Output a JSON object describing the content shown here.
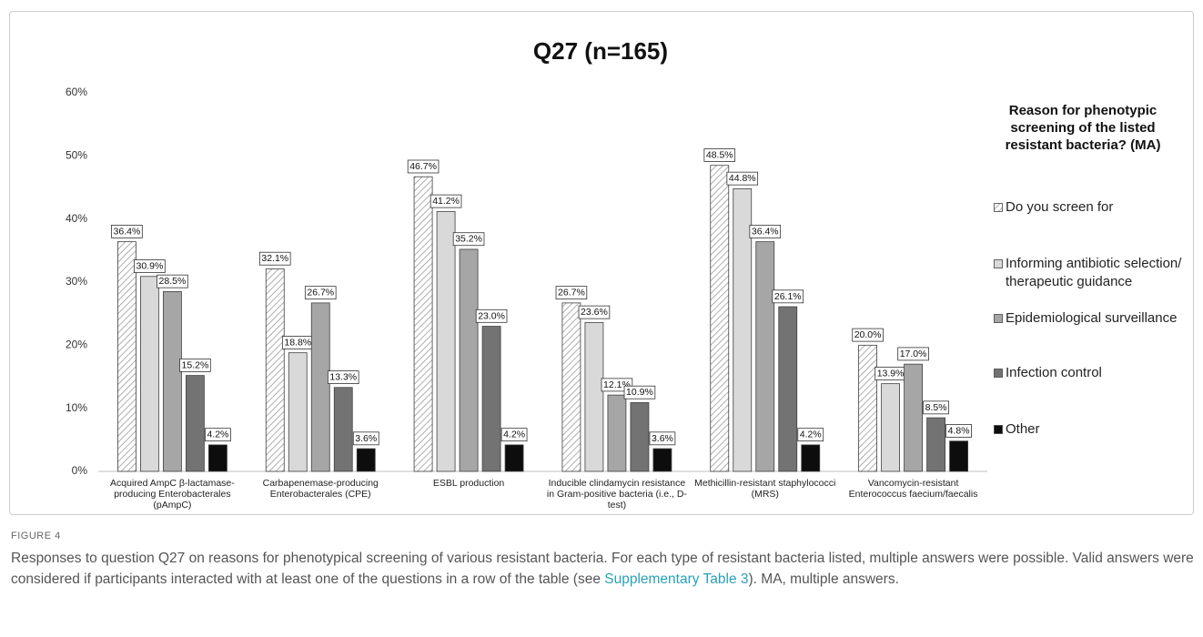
{
  "chart_data": {
    "type": "bar",
    "title": "Q27  (n=165)",
    "categories": [
      "Acquired AmpC β-lactamase-producing Enterobacterales (pAmpC)",
      "Carbapenemase-producing Enterobacterales (CPE)",
      "ESBL production",
      "Inducible clindamycin resistance in Gram-positive bacteria (i.e., D-test)",
      "Methicillin-resistant staphylococci (MRS)",
      "Vancomycin-resistant Enterococcus faecium/faecalis"
    ],
    "series": [
      {
        "name": "Do you screen for",
        "color": "#ffffff",
        "pattern": "hatch",
        "values": [
          36.4,
          32.1,
          46.7,
          26.7,
          48.5,
          20.0
        ],
        "value_labels": [
          "36.4%",
          "32.1%",
          "46.7%",
          "26.7%",
          "48.5%",
          "20.0%"
        ]
      },
      {
        "name": "Informing antibiotic selection/ therapeutic guidance",
        "color": "#d9d9d9",
        "values": [
          30.9,
          18.8,
          41.2,
          23.6,
          44.8,
          13.9
        ],
        "value_labels": [
          "30.9%",
          "18.8%",
          "41.2%",
          "23.6%",
          "44.8%",
          "13.9%"
        ]
      },
      {
        "name": "Epidemiological surveillance",
        "color": "#a6a6a6",
        "values": [
          28.5,
          26.7,
          35.2,
          12.1,
          36.4,
          17.0
        ],
        "value_labels": [
          "28.5%",
          "26.7%",
          "35.2%",
          "12.1%",
          "36.4%",
          "17.0%"
        ]
      },
      {
        "name": "Infection control",
        "color": "#737373",
        "values": [
          15.2,
          13.3,
          23.0,
          10.9,
          26.1,
          8.5
        ],
        "value_labels": [
          "15.2%",
          "13.3%",
          "23.0%",
          "10.9%",
          "26.1%",
          "8.5%"
        ]
      },
      {
        "name": "Other",
        "color": "#0d0d0d",
        "values": [
          4.2,
          3.6,
          4.2,
          3.6,
          4.2,
          4.8
        ],
        "value_labels": [
          "4.2%",
          "3.6%",
          "4.2%",
          "3.6%",
          "4.2%",
          "4.8%"
        ]
      }
    ],
    "ylim": [
      0,
      60
    ],
    "yticks": [
      {
        "value": 0,
        "label": "0%"
      },
      {
        "value": 10,
        "label": "10%"
      },
      {
        "value": 20,
        "label": "20%"
      },
      {
        "value": 30,
        "label": "30%"
      },
      {
        "value": 40,
        "label": "40%"
      },
      {
        "value": 50,
        "label": "50%"
      },
      {
        "value": 60,
        "label": "60%"
      }
    ],
    "grid": false,
    "legend_title": "Reason for phenotypic screening of the listed resistant bacteria? (MA)",
    "legend": "right"
  },
  "figure": {
    "label": "FIGURE 4",
    "caption": [
      "Responses to question Q27 on reasons for phenotypical screening of various resistant bacteria. For each type of resistant bacteria listed, multiple answers were possible. Valid answers were considered if participants interacted with at least one of the questions in a row of the table (see ",
      "Supplementary Table 3",
      "). MA, multiple answers."
    ]
  }
}
